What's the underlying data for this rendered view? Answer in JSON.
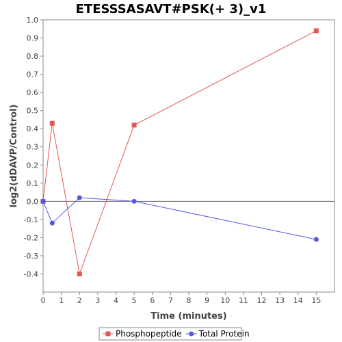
{
  "chart_data": {
    "type": "line",
    "title": "ETESSSASAVT#PSK(+ 3)_v1",
    "xlabel": "Time (minutes)",
    "ylabel": "log2(dDAVP/Control)",
    "xlim": [
      0,
      16
    ],
    "ylim": [
      -0.5,
      1.0
    ],
    "xticks": [
      0,
      1,
      2,
      3,
      4,
      5,
      6,
      7,
      8,
      9,
      10,
      11,
      12,
      13,
      14,
      15
    ],
    "yticks": [
      -0.4,
      -0.3,
      -0.2,
      -0.1,
      0.0,
      0.1,
      0.2,
      0.3,
      0.4,
      0.5,
      0.6,
      0.7,
      0.8,
      0.9,
      1.0
    ],
    "ytick_labels": [
      "-0.4",
      "-0.3",
      "-0.2",
      "-0.1",
      "0.0",
      "0.1",
      "0.2",
      "0.3",
      "0.4",
      "0.5",
      "0.6",
      "0.7",
      "0.8",
      "0.9",
      "1.0"
    ],
    "zero_line": true,
    "grid": false,
    "legend_position": "bottom-center",
    "series": [
      {
        "name": "Phosphopeptide",
        "marker": "square",
        "color": "#e15656",
        "x": [
          0,
          0.5,
          2,
          5,
          15
        ],
        "y": [
          0.0,
          0.43,
          -0.4,
          0.42,
          0.94
        ]
      },
      {
        "name": "Total Protein",
        "marker": "circle",
        "color": "#5555e6",
        "x": [
          0,
          0.5,
          2,
          5,
          15
        ],
        "y": [
          0.0,
          -0.12,
          0.02,
          0.0,
          -0.21
        ]
      }
    ]
  }
}
